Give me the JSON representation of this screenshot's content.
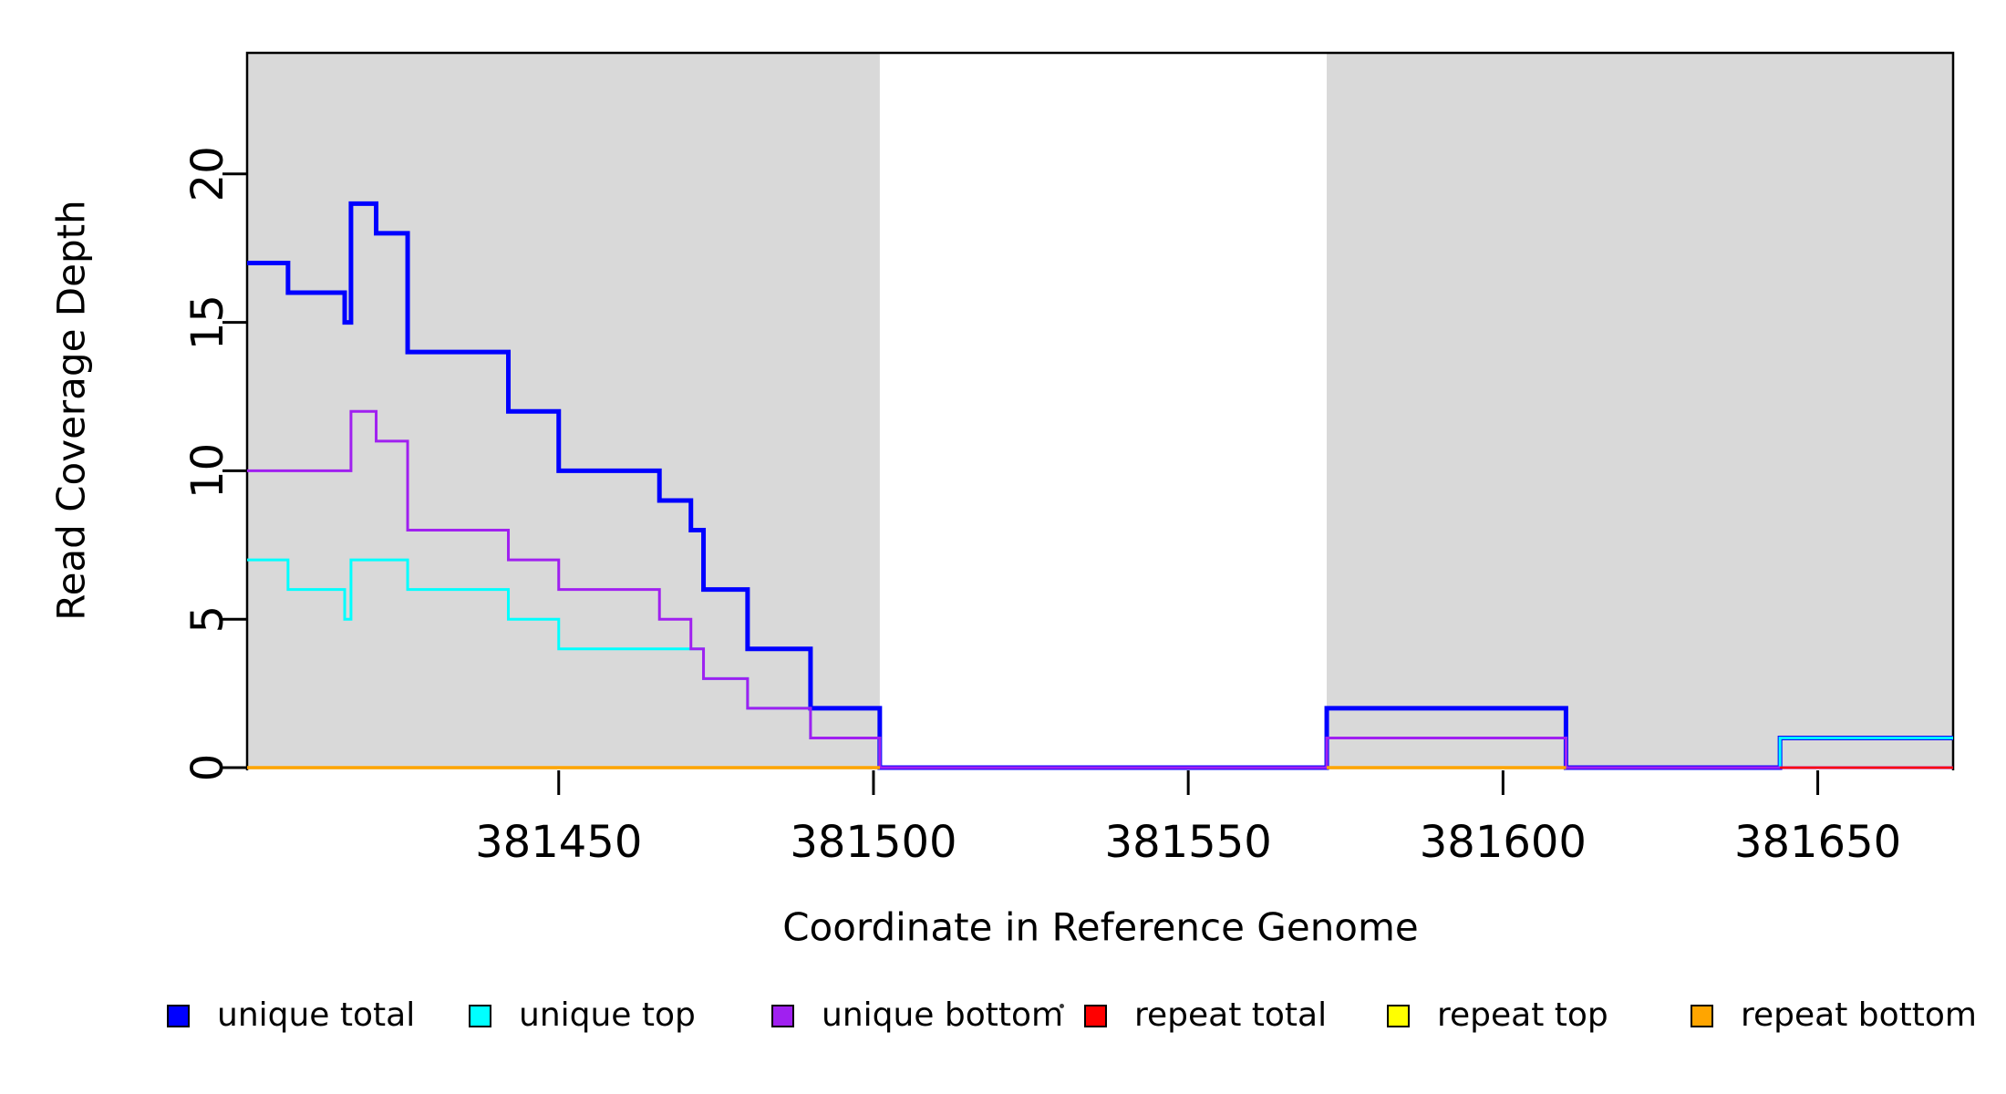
{
  "chart_data": {
    "type": "line",
    "subtype": "step-coverage",
    "title": "",
    "xlabel": "Coordinate in Reference Genome",
    "ylabel": "Read Coverage Depth",
    "xlim": [
      381400.5,
      381671.5
    ],
    "ylim": [
      0,
      24.1
    ],
    "grid": false,
    "legend_position": "bottom",
    "background_color": "#ffffff",
    "shaded_region_color": "#d9d9d9",
    "shaded_regions": [
      {
        "from": 381400.5,
        "to": 381501,
        "meaning": "repeat-region-shading"
      },
      {
        "from": 381572,
        "to": 381671.5,
        "meaning": "repeat-region-shading"
      }
    ],
    "x_ticks": [
      {
        "label": "381450",
        "value": 381450
      },
      {
        "label": "381500",
        "value": 381500
      },
      {
        "label": "381550",
        "value": 381550
      },
      {
        "label": "381600",
        "value": 381600
      },
      {
        "label": "381650",
        "value": 381650
      }
    ],
    "y_ticks": [
      {
        "label": "0",
        "value": 0
      },
      {
        "label": "5",
        "value": 5
      },
      {
        "label": "10",
        "value": 10
      },
      {
        "label": "15",
        "value": 15
      },
      {
        "label": "20",
        "value": 20
      }
    ],
    "series": [
      {
        "name": "unique total",
        "color": "#0000ff",
        "stroke_width": 5,
        "levels": [
          [
            381400.5,
            17
          ],
          [
            381407,
            16
          ],
          [
            381416,
            15
          ],
          [
            381417,
            19
          ],
          [
            381421,
            18
          ],
          [
            381426,
            14
          ],
          [
            381442,
            12
          ],
          [
            381450,
            10
          ],
          [
            381466,
            9
          ],
          [
            381471,
            8
          ],
          [
            381473,
            6
          ],
          [
            381480,
            4
          ],
          [
            381490,
            2
          ],
          [
            381501,
            0
          ],
          [
            381572,
            2
          ],
          [
            381610,
            0
          ],
          [
            381644,
            1
          ]
        ],
        "end": 381671.5
      },
      {
        "name": "unique top",
        "color": "#00ffff",
        "stroke_width": 3,
        "levels": [
          [
            381400.5,
            7
          ],
          [
            381407,
            6
          ],
          [
            381416,
            5
          ],
          [
            381417,
            7
          ],
          [
            381426,
            6
          ],
          [
            381442,
            5
          ],
          [
            381450,
            4
          ],
          [
            381473,
            3
          ],
          [
            381480,
            2
          ],
          [
            381490,
            1
          ],
          [
            381501,
            0
          ],
          [
            381572,
            1
          ],
          [
            381610,
            0
          ],
          [
            381644,
            1
          ]
        ],
        "end": 381671.5
      },
      {
        "name": "unique bottom",
        "color": "#a020f0",
        "stroke_width": 3,
        "levels": [
          [
            381400.5,
            10
          ],
          [
            381417,
            12
          ],
          [
            381421,
            11
          ],
          [
            381426,
            8
          ],
          [
            381442,
            7
          ],
          [
            381450,
            6
          ],
          [
            381466,
            5
          ],
          [
            381471,
            4
          ],
          [
            381473,
            3
          ],
          [
            381480,
            2
          ],
          [
            381490,
            1
          ],
          [
            381501,
            0
          ],
          [
            381572,
            1
          ],
          [
            381610,
            0
          ]
        ],
        "end": 381671.5
      },
      {
        "name": "repeat total",
        "color": "#ff0000",
        "stroke_width": 2.5,
        "value": 0,
        "segments": [
          [
            381400.5,
            381501
          ],
          [
            381572,
            381610
          ],
          [
            381644,
            381671.5
          ]
        ]
      },
      {
        "name": "repeat top",
        "color": "#ffff00",
        "stroke_width": 2.5,
        "value": 0,
        "segments": [
          [
            381400.5,
            381501
          ],
          [
            381572,
            381610
          ]
        ]
      },
      {
        "name": "repeat bottom",
        "color": "#ffa500",
        "stroke_width": 3.5,
        "value": 0,
        "segments": [
          [
            381400.5,
            381501
          ],
          [
            381572,
            381610
          ]
        ]
      }
    ],
    "legend": [
      {
        "label": "unique total",
        "color": "#0000ff"
      },
      {
        "label": "unique top",
        "color": "#00ffff"
      },
      {
        "label": "unique bottom",
        "color": "#a020f0"
      },
      {
        "label": "repeat total",
        "color": "#ff0000"
      },
      {
        "label": "repeat top",
        "color": "#ffff00"
      },
      {
        "label": "repeat bottom",
        "color": "#ffa500"
      }
    ]
  },
  "titles": {
    "x_axis": "Coordinate in Reference Genome",
    "y_axis": "Read Coverage Depth"
  }
}
